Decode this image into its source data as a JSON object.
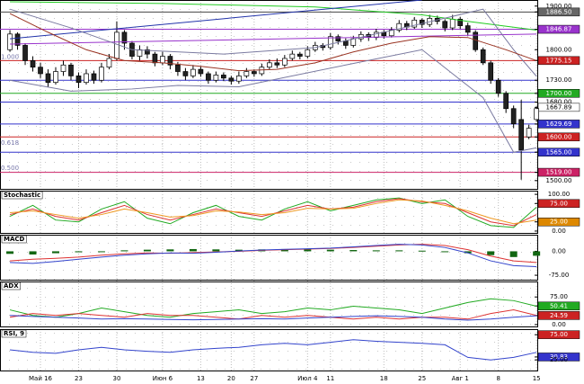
{
  "chart_data": [
    {
      "type": "candlestick",
      "xlim": [
        -1.3,
        69.1
      ],
      "xticks": [
        {
          "value": 4,
          "label": "Май 16"
        },
        {
          "value": 9,
          "label": "23"
        },
        {
          "value": 14,
          "label": "30"
        },
        {
          "value": 20,
          "label": "Июн 6"
        },
        {
          "value": 25,
          "label": "13"
        },
        {
          "value": 29,
          "label": "20"
        },
        {
          "value": 32,
          "label": "27"
        },
        {
          "value": 39,
          "label": "Июл 4"
        },
        {
          "value": 42,
          "label": "11"
        },
        {
          "value": 49,
          "label": "18"
        },
        {
          "value": 54,
          "label": "25"
        },
        {
          "value": 59,
          "label": "Авг 1"
        },
        {
          "value": 64,
          "label": "8"
        },
        {
          "value": 69,
          "label": "15"
        }
      ],
      "ylim": [
        1481,
        1914
      ],
      "yticks": [
        {
          "value": 1900,
          "label": "1900.00"
        },
        {
          "value": 1886.5,
          "label": "1886.50",
          "box": "#666666",
          "line": "#444444"
        },
        {
          "value": 1846.87,
          "label": "1846.87",
          "box": "#9933cc",
          "line": "#9933cc"
        },
        {
          "value": 1800,
          "label": "1800.00"
        },
        {
          "value": 1775.15,
          "label": "1775.15",
          "box": "#cc2222",
          "line": "#cc2222"
        },
        {
          "value": 1730,
          "label": "1730.00",
          "line": "#3333cc"
        },
        {
          "value": 1700,
          "label": "1700.00",
          "box": "#22aa22",
          "line": "#22aa22"
        },
        {
          "value": 1680,
          "label": "1680.00",
          "line": "#3333cc"
        },
        {
          "value": 1667.89,
          "label": "1667.89",
          "box": "#ffffff"
        },
        {
          "value": 1629.69,
          "label": "1629.69",
          "box": "#3333cc",
          "line": "#3333cc"
        },
        {
          "value": 1600,
          "label": "1600.00",
          "box": "#cc2222",
          "line": "#cc2222"
        },
        {
          "value": 1565,
          "label": "1565.00",
          "box": "#3333cc",
          "line": "#3333cc"
        },
        {
          "value": 1519,
          "label": "1519.00",
          "box": "#cc2266",
          "line": "#cc2266"
        },
        {
          "value": 1500,
          "label": "1500.00"
        }
      ],
      "annotations": [
        {
          "value": 1775.15,
          "label": "1.000"
        },
        {
          "value": 1578,
          "label": "0.618"
        },
        {
          "value": 1520,
          "label": "0.500"
        }
      ],
      "open": [
        1800,
        1836,
        1810,
        1775,
        1760,
        1745,
        1725,
        1750,
        1765,
        1740,
        1725,
        1745,
        1730,
        1760,
        1780,
        1840,
        1815,
        1785,
        1800,
        1790,
        1770,
        1785,
        1765,
        1750,
        1740,
        1755,
        1745,
        1730,
        1742,
        1735,
        1728,
        1740,
        1750,
        1745,
        1760,
        1770,
        1765,
        1780,
        1790,
        1785,
        1800,
        1810,
        1805,
        1830,
        1820,
        1810,
        1825,
        1835,
        1828,
        1840,
        1832,
        1845,
        1860,
        1852,
        1868,
        1858,
        1872,
        1865,
        1850,
        1870,
        1855,
        1840,
        1800,
        1770,
        1730,
        1700,
        1665,
        1640,
        1600,
        1640
      ],
      "high": [
        1845,
        1840,
        1815,
        1785,
        1770,
        1755,
        1760,
        1775,
        1770,
        1748,
        1755,
        1752,
        1770,
        1790,
        1865,
        1845,
        1820,
        1810,
        1808,
        1795,
        1795,
        1790,
        1772,
        1758,
        1765,
        1762,
        1750,
        1750,
        1748,
        1740,
        1750,
        1758,
        1755,
        1768,
        1778,
        1780,
        1788,
        1798,
        1795,
        1808,
        1818,
        1815,
        1838,
        1835,
        1826,
        1832,
        1842,
        1840,
        1848,
        1845,
        1852,
        1868,
        1866,
        1875,
        1872,
        1880,
        1878,
        1870,
        1880,
        1875,
        1862,
        1845,
        1805,
        1775,
        1735,
        1705,
        1672,
        1685,
        1628,
        1670
      ],
      "low": [
        1795,
        1800,
        1765,
        1750,
        1735,
        1715,
        1720,
        1740,
        1730,
        1712,
        1720,
        1722,
        1725,
        1755,
        1775,
        1800,
        1778,
        1775,
        1780,
        1762,
        1765,
        1755,
        1740,
        1730,
        1735,
        1738,
        1722,
        1725,
        1728,
        1720,
        1722,
        1735,
        1738,
        1740,
        1755,
        1758,
        1760,
        1775,
        1778,
        1780,
        1795,
        1798,
        1800,
        1812,
        1802,
        1805,
        1818,
        1820,
        1822,
        1825,
        1828,
        1840,
        1845,
        1848,
        1850,
        1852,
        1858,
        1842,
        1845,
        1848,
        1832,
        1795,
        1765,
        1722,
        1692,
        1655,
        1620,
        1502,
        1595,
        1635
      ],
      "close": [
        1836,
        1810,
        1775,
        1760,
        1745,
        1725,
        1750,
        1765,
        1740,
        1725,
        1745,
        1730,
        1760,
        1780,
        1840,
        1815,
        1785,
        1800,
        1790,
        1770,
        1785,
        1765,
        1750,
        1740,
        1755,
        1745,
        1730,
        1742,
        1735,
        1728,
        1740,
        1750,
        1745,
        1760,
        1770,
        1765,
        1780,
        1790,
        1785,
        1800,
        1810,
        1805,
        1830,
        1820,
        1810,
        1825,
        1835,
        1828,
        1840,
        1832,
        1845,
        1860,
        1852,
        1868,
        1858,
        1872,
        1865,
        1850,
        1870,
        1855,
        1840,
        1800,
        1770,
        1730,
        1700,
        1665,
        1630,
        1570,
        1620,
        1665
      ],
      "series": [
        {
          "color": "#22cc22",
          "x": [
            0,
            20,
            40,
            54,
            60,
            69
          ],
          "values": [
            1910,
            1906,
            1898,
            1880,
            1865,
            1845
          ]
        },
        {
          "color": "#2233aa",
          "x": [
            0,
            54
          ],
          "values": [
            1825,
            1914
          ]
        },
        {
          "color": "#9933cc",
          "x": [
            0,
            69
          ],
          "values": [
            1813,
            1836
          ]
        },
        {
          "color": "#7a7aa0",
          "x": [
            0,
            8,
            16,
            28,
            40,
            54,
            62,
            66,
            69
          ],
          "values": [
            1893,
            1850,
            1800,
            1790,
            1805,
            1860,
            1893,
            1800,
            1739
          ]
        },
        {
          "color": "#7a7aa0",
          "x": [
            0,
            8,
            16,
            22,
            30,
            44,
            54,
            62,
            66,
            69
          ],
          "values": [
            1730,
            1705,
            1710,
            1718,
            1715,
            1765,
            1800,
            1690,
            1565,
            1575
          ]
        },
        {
          "color": "#993322",
          "x": [
            0,
            5,
            10,
            15,
            20,
            25,
            30,
            35,
            40,
            45,
            50,
            55,
            60,
            65,
            69
          ],
          "values": [
            1883,
            1840,
            1800,
            1775,
            1770,
            1762,
            1752,
            1755,
            1770,
            1795,
            1815,
            1830,
            1828,
            1800,
            1775
          ]
        }
      ]
    },
    {
      "type": "line",
      "title": "Stochastic",
      "x": [
        0,
        3,
        6,
        9,
        12,
        15,
        18,
        21,
        24,
        27,
        30,
        33,
        36,
        39,
        42,
        45,
        48,
        51,
        54,
        57,
        60,
        63,
        66,
        69
      ],
      "ylim": [
        -5,
        110
      ],
      "yticks": [
        {
          "value": 100,
          "label": "100.00"
        },
        {
          "value": 75,
          "label": "75.00",
          "box": "#cc2222"
        },
        {
          "value": 25,
          "label": "25.00",
          "box": "#dd8800"
        },
        {
          "value": 0,
          "label": "0.00"
        }
      ],
      "series": [
        {
          "color": "#22aa22",
          "values": [
            40,
            70,
            30,
            25,
            60,
            80,
            35,
            20,
            50,
            70,
            40,
            30,
            60,
            80,
            55,
            70,
            85,
            90,
            75,
            85,
            40,
            15,
            10,
            65
          ]
        },
        {
          "color": "#dd3333",
          "values": [
            45,
            60,
            40,
            30,
            50,
            70,
            45,
            30,
            45,
            60,
            50,
            40,
            55,
            70,
            60,
            65,
            80,
            88,
            80,
            75,
            50,
            25,
            15,
            45
          ]
        },
        {
          "color": "#ee9922",
          "values": [
            50,
            55,
            45,
            35,
            45,
            60,
            50,
            38,
            42,
            55,
            52,
            45,
            50,
            62,
            60,
            62,
            75,
            85,
            82,
            70,
            55,
            35,
            20,
            30
          ]
        }
      ]
    },
    {
      "type": "line",
      "title": "MACD",
      "x": [
        0,
        3,
        6,
        9,
        12,
        15,
        18,
        21,
        24,
        27,
        30,
        33,
        36,
        39,
        42,
        45,
        48,
        51,
        54,
        57,
        60,
        63,
        66,
        69
      ],
      "ylim": [
        -89,
        52
      ],
      "yticks": [
        {
          "value": 0,
          "label": "0.00"
        },
        {
          "value": -75,
          "label": "-75.00"
        }
      ],
      "series": [
        {
          "kind": "bar",
          "color": "#116611",
          "values": [
            -8,
            -10,
            -6,
            -3,
            0,
            3,
            5,
            6,
            7,
            6,
            5,
            6,
            7,
            6,
            5,
            4,
            3,
            3,
            2,
            0,
            -6,
            -12,
            -18,
            -14
          ]
        },
        {
          "color": "#dd3333",
          "values": [
            -30,
            -25,
            -22,
            -18,
            -12,
            -8,
            -5,
            -6,
            -4,
            -2,
            0,
            3,
            5,
            7,
            9,
            12,
            16,
            20,
            22,
            18,
            5,
            -15,
            -30,
            -35
          ]
        },
        {
          "color": "#3344cc",
          "values": [
            -35,
            -38,
            -32,
            -25,
            -18,
            -12,
            -8,
            -5,
            -6,
            -3,
            1,
            4,
            6,
            8,
            10,
            14,
            18,
            22,
            20,
            12,
            -5,
            -30,
            -45,
            -48
          ]
        }
      ]
    },
    {
      "type": "line",
      "title": "ADX",
      "x": [
        0,
        3,
        6,
        9,
        12,
        15,
        18,
        21,
        24,
        27,
        30,
        33,
        36,
        39,
        42,
        45,
        48,
        51,
        54,
        57,
        60,
        63,
        66,
        69
      ],
      "ylim": [
        -5,
        117
      ],
      "yticks": [
        {
          "value": 75,
          "label": "75.00"
        },
        {
          "value": 50.41,
          "label": "50.41",
          "box": "#22aa22"
        },
        {
          "value": 24.59,
          "label": "24.59",
          "box": "#cc2222"
        },
        {
          "value": 0,
          "label": "0.00"
        }
      ],
      "series": [
        {
          "color": "#22aa22",
          "values": [
            40,
            25,
            20,
            30,
            45,
            35,
            25,
            20,
            30,
            35,
            40,
            30,
            35,
            45,
            40,
            50,
            45,
            40,
            30,
            45,
            60,
            70,
            65,
            50
          ]
        },
        {
          "color": "#dd3333",
          "values": [
            20,
            30,
            25,
            30,
            25,
            20,
            30,
            25,
            25,
            20,
            15,
            25,
            20,
            25,
            20,
            15,
            20,
            15,
            20,
            20,
            15,
            30,
            40,
            25
          ]
        },
        {
          "color": "#3344cc",
          "values": [
            25,
            22,
            20,
            18,
            15,
            16,
            15,
            14,
            13,
            14,
            15,
            16,
            15,
            18,
            20,
            22,
            24,
            22,
            20,
            15,
            12,
            15,
            20,
            24
          ]
        }
      ]
    },
    {
      "type": "line",
      "title": "RSI, 9",
      "x": [
        0,
        3,
        6,
        9,
        12,
        15,
        18,
        21,
        24,
        27,
        30,
        33,
        36,
        39,
        42,
        45,
        48,
        51,
        54,
        57,
        60,
        63,
        66,
        69
      ],
      "ylim": [
        4,
        86
      ],
      "yticks": [
        {
          "value": 75,
          "label": "75.00",
          "box": "#cc2222"
        },
        {
          "value": 30.83,
          "label": "30.83",
          "box": "#3333cc"
        },
        {
          "value": 25,
          "label": "25.00"
        }
      ],
      "series": [
        {
          "color": "#3344cc",
          "values": [
            45,
            40,
            38,
            45,
            50,
            45,
            42,
            40,
            45,
            48,
            50,
            55,
            58,
            55,
            60,
            65,
            62,
            60,
            58,
            55,
            30,
            25,
            30,
            40
          ]
        }
      ]
    }
  ]
}
